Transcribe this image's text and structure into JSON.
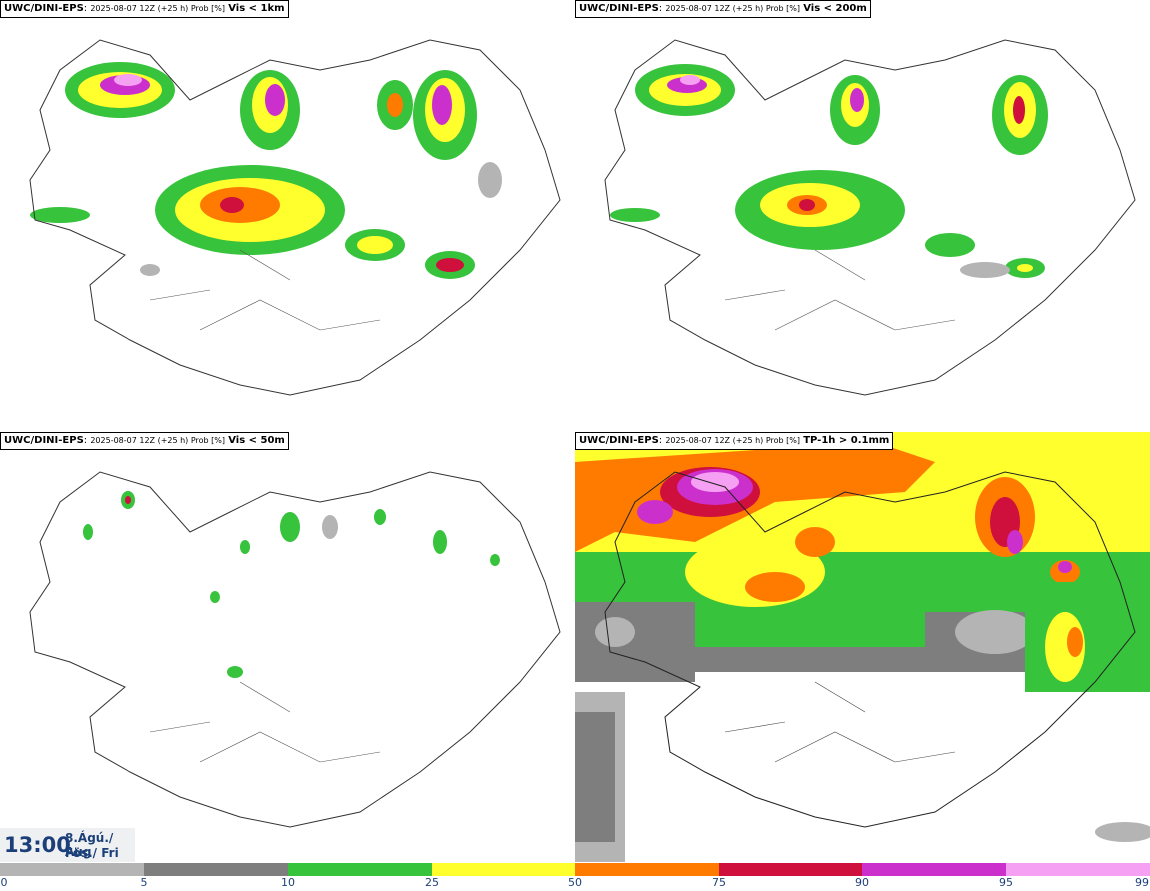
{
  "panels": [
    {
      "source": "UWC/DINI-EPS",
      "meta": "2025-08-07 12Z (+25 h) Prob [%]",
      "variable": "Vis < 1km"
    },
    {
      "source": "UWC/DINI-EPS",
      "meta": "2025-08-07 12Z (+25 h) Prob [%]",
      "variable": "Vis < 200m"
    },
    {
      "source": "UWC/DINI-EPS",
      "meta": "2025-08-07 12Z (+25 h) Prob [%]",
      "variable": "Vis < 50m"
    },
    {
      "source": "UWC/DINI-EPS",
      "meta": "2025-08-07 12Z (+25 h) Prob [%]",
      "variable": "TP-1h > 0.1mm"
    }
  ],
  "time": {
    "clock": "13:00",
    "date_line1": "8.Ágú./ Aug",
    "date_line2": "Fös./ Fri"
  },
  "legend": {
    "ticks": [
      "0",
      "5",
      "10",
      "25",
      "50",
      "75",
      "90",
      "95",
      "99"
    ],
    "colors": [
      "#ffffff",
      "#b4b4b4",
      "#7e7e7e",
      "#37c33c",
      "#ffff2e",
      "#ff7b00",
      "#cf0f3c",
      "#cc30cc",
      "#f6a0f3"
    ]
  }
}
